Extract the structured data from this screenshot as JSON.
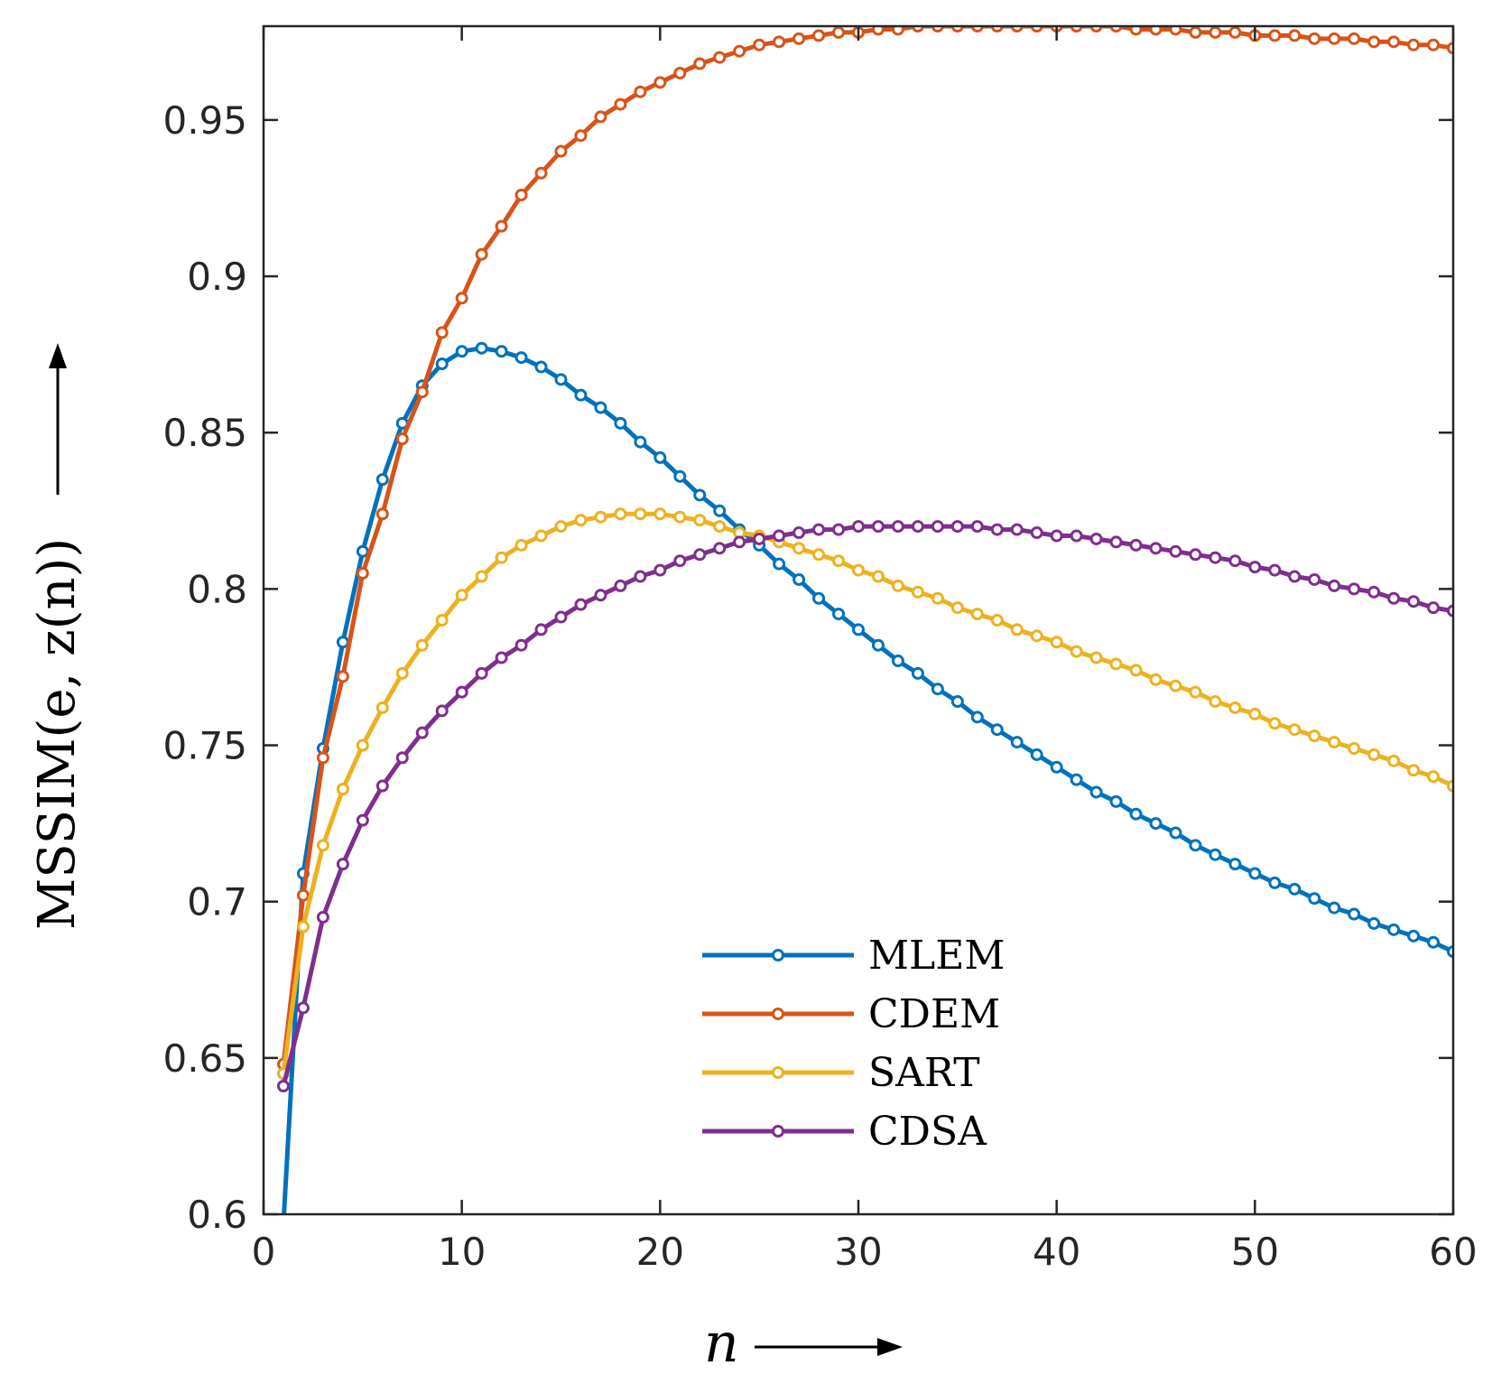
{
  "chart_data": {
    "type": "line",
    "title": "",
    "xlabel": "n",
    "ylabel": "MSSIM(e, z(n))",
    "xlim": [
      0,
      60
    ],
    "ylim": [
      0.6,
      0.98
    ],
    "xticks": [
      "0",
      "10",
      "20",
      "30",
      "40",
      "50",
      "60"
    ],
    "yticks": [
      "0.6",
      "0.65",
      "0.7",
      "0.75",
      "0.8",
      "0.85",
      "0.9",
      "0.95"
    ],
    "grid": false,
    "legend_position": "bottom-center",
    "x": [
      1,
      2,
      3,
      4,
      5,
      6,
      7,
      8,
      9,
      10,
      11,
      12,
      13,
      14,
      15,
      16,
      17,
      18,
      19,
      20,
      21,
      22,
      23,
      24,
      25,
      26,
      27,
      28,
      29,
      30,
      31,
      32,
      33,
      34,
      35,
      36,
      37,
      38,
      39,
      40,
      41,
      42,
      43,
      44,
      45,
      46,
      47,
      48,
      49,
      50,
      51,
      52,
      53,
      54,
      55,
      56,
      57,
      58,
      59,
      60
    ],
    "series": [
      {
        "name": "MLEM",
        "color": "#0072BD",
        "values": [
          0.597,
          0.709,
          0.749,
          0.783,
          0.812,
          0.835,
          0.853,
          0.865,
          0.872,
          0.876,
          0.877,
          0.876,
          0.874,
          0.871,
          0.867,
          0.862,
          0.858,
          0.853,
          0.847,
          0.842,
          0.836,
          0.83,
          0.825,
          0.819,
          0.814,
          0.808,
          0.803,
          0.797,
          0.792,
          0.787,
          0.782,
          0.777,
          0.773,
          0.768,
          0.764,
          0.759,
          0.755,
          0.751,
          0.747,
          0.743,
          0.739,
          0.735,
          0.732,
          0.728,
          0.725,
          0.722,
          0.718,
          0.715,
          0.712,
          0.709,
          0.706,
          0.704,
          0.701,
          0.698,
          0.696,
          0.693,
          0.691,
          0.689,
          0.687,
          0.684
        ]
      },
      {
        "name": "CDEM",
        "color": "#D95319",
        "values": [
          0.648,
          0.702,
          0.746,
          0.772,
          0.805,
          0.824,
          0.848,
          0.863,
          0.882,
          0.893,
          0.907,
          0.916,
          0.926,
          0.933,
          0.94,
          0.945,
          0.951,
          0.955,
          0.959,
          0.962,
          0.965,
          0.968,
          0.97,
          0.972,
          0.974,
          0.975,
          0.976,
          0.977,
          0.978,
          0.978,
          0.979,
          0.979,
          0.98,
          0.98,
          0.98,
          0.98,
          0.98,
          0.98,
          0.98,
          0.98,
          0.98,
          0.98,
          0.98,
          0.979,
          0.979,
          0.979,
          0.978,
          0.978,
          0.978,
          0.977,
          0.977,
          0.977,
          0.976,
          0.976,
          0.976,
          0.975,
          0.975,
          0.974,
          0.974,
          0.973
        ]
      },
      {
        "name": "SART",
        "color": "#EDB120",
        "values": [
          0.645,
          0.692,
          0.718,
          0.736,
          0.75,
          0.762,
          0.773,
          0.782,
          0.79,
          0.798,
          0.804,
          0.81,
          0.814,
          0.817,
          0.82,
          0.822,
          0.823,
          0.824,
          0.824,
          0.824,
          0.823,
          0.822,
          0.82,
          0.818,
          0.817,
          0.815,
          0.813,
          0.811,
          0.809,
          0.806,
          0.804,
          0.801,
          0.799,
          0.797,
          0.794,
          0.792,
          0.79,
          0.787,
          0.785,
          0.783,
          0.78,
          0.778,
          0.776,
          0.774,
          0.771,
          0.769,
          0.767,
          0.764,
          0.762,
          0.76,
          0.757,
          0.755,
          0.753,
          0.751,
          0.749,
          0.747,
          0.745,
          0.742,
          0.74,
          0.737
        ]
      },
      {
        "name": "CDSA",
        "color": "#7E2F8E",
        "values": [
          0.641,
          0.666,
          0.695,
          0.712,
          0.726,
          0.737,
          0.746,
          0.754,
          0.761,
          0.767,
          0.773,
          0.778,
          0.782,
          0.787,
          0.791,
          0.795,
          0.798,
          0.801,
          0.804,
          0.806,
          0.809,
          0.811,
          0.813,
          0.815,
          0.816,
          0.817,
          0.818,
          0.819,
          0.819,
          0.82,
          0.82,
          0.82,
          0.82,
          0.82,
          0.82,
          0.82,
          0.819,
          0.819,
          0.818,
          0.817,
          0.817,
          0.816,
          0.815,
          0.814,
          0.813,
          0.812,
          0.811,
          0.81,
          0.809,
          0.807,
          0.806,
          0.804,
          0.803,
          0.801,
          0.8,
          0.799,
          0.797,
          0.796,
          0.794,
          0.793
        ]
      }
    ]
  }
}
